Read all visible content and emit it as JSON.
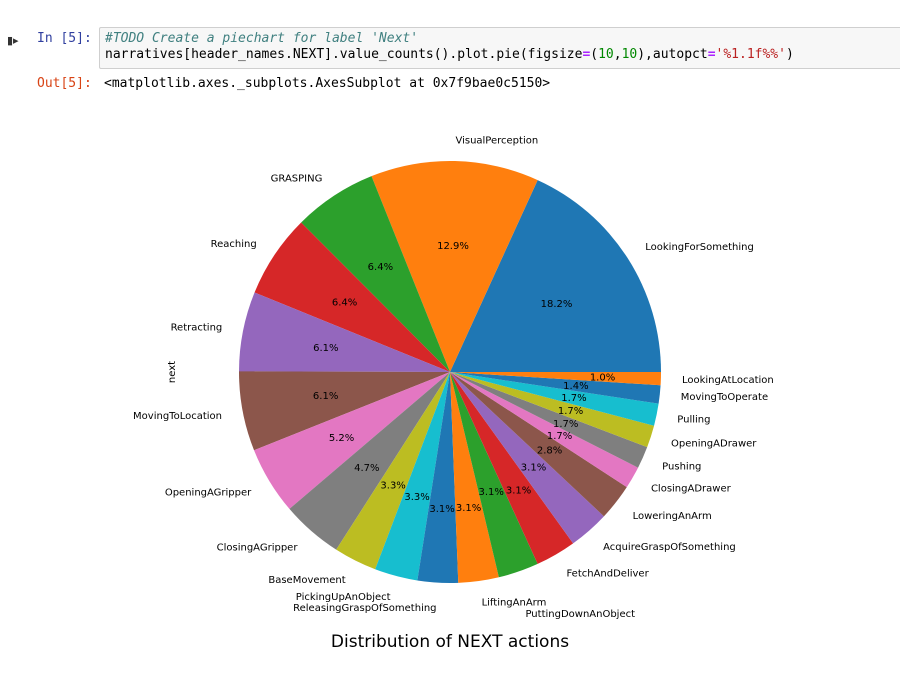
{
  "cell": {
    "run_icon": "step-forward-icon",
    "in_prompt": "In [5]:",
    "code_comment": "#TODO Create a piechart for label 'Next'",
    "code_part1": "narratives[header_names.NEXT].value_counts().plot.pie(figsize",
    "code_eq1": "=",
    "code_paren_open": "(",
    "code_num1": "10",
    "code_comma": ",",
    "code_num2": "10",
    "code_part2": "),autopct",
    "code_eq2": "=",
    "code_str": "'%1.1f%%'",
    "code_end": ")",
    "out_prompt": "Out[5]:",
    "out_text": "<matplotlib.axes._subplots.AxesSubplot at 0x7f9bae0c5150>"
  },
  "chart_data": {
    "type": "pie",
    "title": "Distribution of NEXT actions",
    "ylabel": "next",
    "start_angle_deg": 0,
    "direction": "counterclockwise",
    "categories": [
      "LookingForSomething",
      "VisualPerception",
      "GRASPING",
      "Reaching",
      "Retracting",
      "MovingToLocation",
      "OpeningAGripper",
      "ClosingAGripper",
      "BaseMovement",
      "PickingUpAnObject",
      "ReleasingGraspOfSomething",
      "LiftingAnArm",
      "PuttingDownAnObject",
      "FetchAndDeliver",
      "AcquireGraspOfSomething",
      "LoweringAnArm",
      "ClosingADrawer",
      "Pushing",
      "OpeningADrawer",
      "Pulling",
      "MovingToOperate",
      "LookingAtLocation"
    ],
    "values": [
      18.2,
      12.9,
      6.4,
      6.4,
      6.1,
      6.1,
      5.2,
      4.7,
      3.3,
      3.3,
      3.1,
      3.1,
      3.1,
      3.1,
      3.1,
      2.8,
      1.7,
      1.7,
      1.7,
      1.7,
      1.4,
      1.0
    ],
    "pct_labels": [
      "18.2%",
      "12.9%",
      "6.4%",
      "6.4%",
      "6.1%",
      "6.1%",
      "5.2%",
      "4.7%",
      "3.3%",
      "3.3%",
      "3.1%",
      "3.1%",
      "3.1%",
      "3.1%",
      "3.1%",
      "2.8%",
      "1.7%",
      "1.7%",
      "1.7%",
      "1.7%",
      "1.4%",
      "1.0%"
    ],
    "colors": [
      "#1f77b4",
      "#ff7f0e",
      "#2ca02c",
      "#d62728",
      "#9467bd",
      "#8c564b",
      "#e377c2",
      "#7f7f7f",
      "#bcbd22",
      "#17becf"
    ]
  }
}
